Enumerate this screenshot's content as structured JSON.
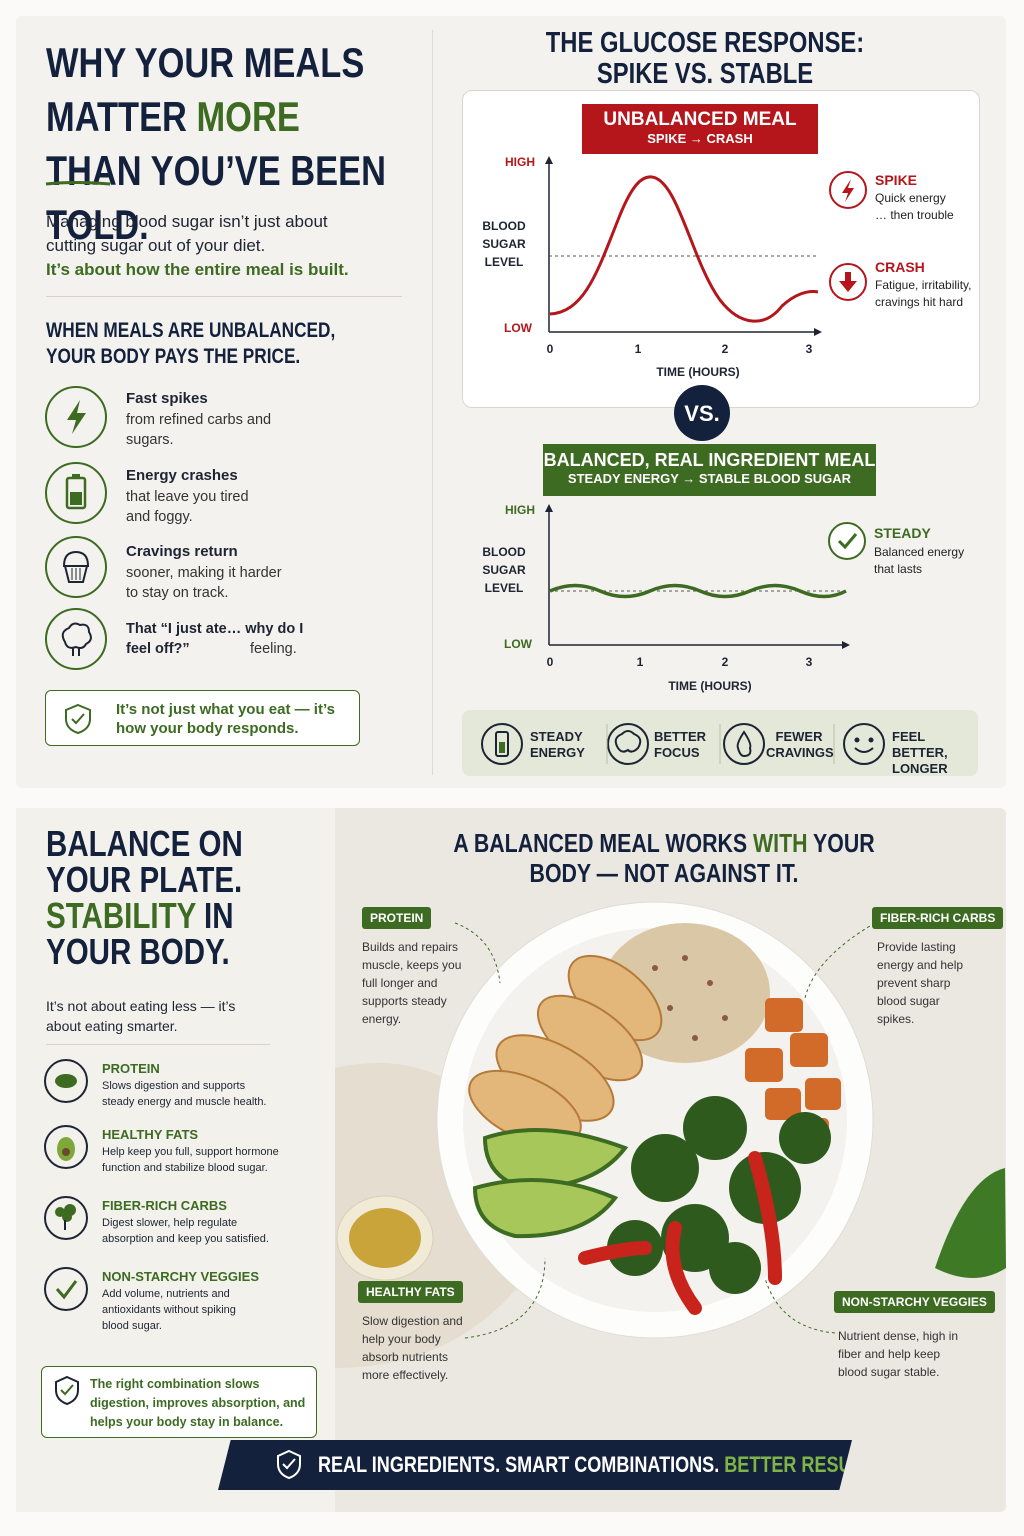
{
  "intro": {
    "title": {
      "before": "WHY YOUR MEALS MATTER",
      "highlight": "MORE",
      "after": "THAN YOU’VE BEEN TOLD."
    },
    "lead": "Managing blood sugar isn’t just about cutting sugar out of your diet.",
    "lead_emphasis": "It’s about how the entire meal is built.",
    "subheading": "WHEN MEALS ARE UNBALANCED, YOUR BODY PAYS THE PRICE.",
    "items": [
      {
        "title": "Fast spikes",
        "text": "from refined carbs and sugars."
      },
      {
        "title": "Energy crashes",
        "text": "that leave you tired and foggy."
      },
      {
        "title": "Cravings return",
        "text": "sooner, making it harder to stay on track."
      },
      {
        "title": "That “I just ate… why do I feel off?”",
        "text": "feeling."
      }
    ],
    "callout": "It’s not just what you eat — it’s how your body responds."
  },
  "glucose": {
    "title": "THE GLUCOSE RESPONSE: SPIKE VS. STABLE",
    "unbalanced": {
      "banner": "UNBALANCED MEAL",
      "banner_sub": "SPIKE → CRASH",
      "y_high": "HIGH",
      "y_low": "LOW",
      "y_title": "BLOOD SUGAR LEVEL",
      "xticks": [
        0,
        1,
        2,
        3
      ],
      "x_title": "TIME (HOURS)",
      "notes": [
        {
          "title": "SPIKE",
          "text": "Quick energy … then trouble"
        },
        {
          "title": "CRASH",
          "text": "Fatigue, irritability, cravings hit hard"
        }
      ]
    },
    "versus": "VS.",
    "balanced": {
      "banner": "BALANCED, REAL INGREDIENT MEAL",
      "banner_sub": "STEADY ENERGY → STABLE BLOOD SUGAR",
      "y_high": "HIGH",
      "y_low": "LOW",
      "y_title": "BLOOD SUGAR LEVEL",
      "xticks": [
        0,
        1,
        2,
        3
      ],
      "x_title": "TIME (HOURS)",
      "notes": [
        {
          "title": "STEADY",
          "text": "Balanced energy that lasts"
        }
      ]
    },
    "benefits": [
      "STEADY ENERGY",
      "BETTER FOCUS",
      "FEWER CRAVINGS",
      "FEEL BETTER, LONGER"
    ]
  },
  "plate": {
    "title": {
      "before": "BALANCE ON YOUR PLATE.",
      "highlight": "STABILITY",
      "after": "IN YOUR BODY."
    },
    "subtitle": "It’s not about eating less — it’s about eating smarter.",
    "items": [
      {
        "title": "PROTEIN",
        "text": "Slows digestion and supports steady energy and muscle health."
      },
      {
        "title": "HEALTHY FATS",
        "text": "Help keep you full, support hormone function and stabilize blood sugar."
      },
      {
        "title": "FIBER-RICH CARBS",
        "text": "Digest slower, help regulate absorption and keep you satisfied."
      },
      {
        "title": "NON-STARCHY VEGGIES",
        "text": "Add volume, nutrients and antioxidants without spiking blood sugar."
      }
    ],
    "callout": "The right combination slows digestion, improves absorption, and helps your body stay in balance.",
    "headline": {
      "before": "A BALANCED MEAL WORKS",
      "highlight": "WITH",
      "after": "YOUR BODY — NOT AGAINST IT."
    },
    "labels": [
      {
        "tag": "PROTEIN",
        "text": "Builds and repairs muscle, keeps you full longer and supports steady energy."
      },
      {
        "tag": "FIBER-RICH CARBS",
        "text": "Provide lasting energy and help prevent sharp blood sugar spikes."
      },
      {
        "tag": "HEALTHY FATS",
        "text": "Slow digestion and help your body absorb nutrients more effectively."
      },
      {
        "tag": "NON-STARCHY VEGGIES",
        "text": "Nutrient dense, high in fiber and help keep blood sugar stable."
      }
    ],
    "footer": {
      "before": "REAL INGREDIENTS. SMART COMBINATIONS.",
      "highlight": "BETTER RESULTS."
    }
  }
}
